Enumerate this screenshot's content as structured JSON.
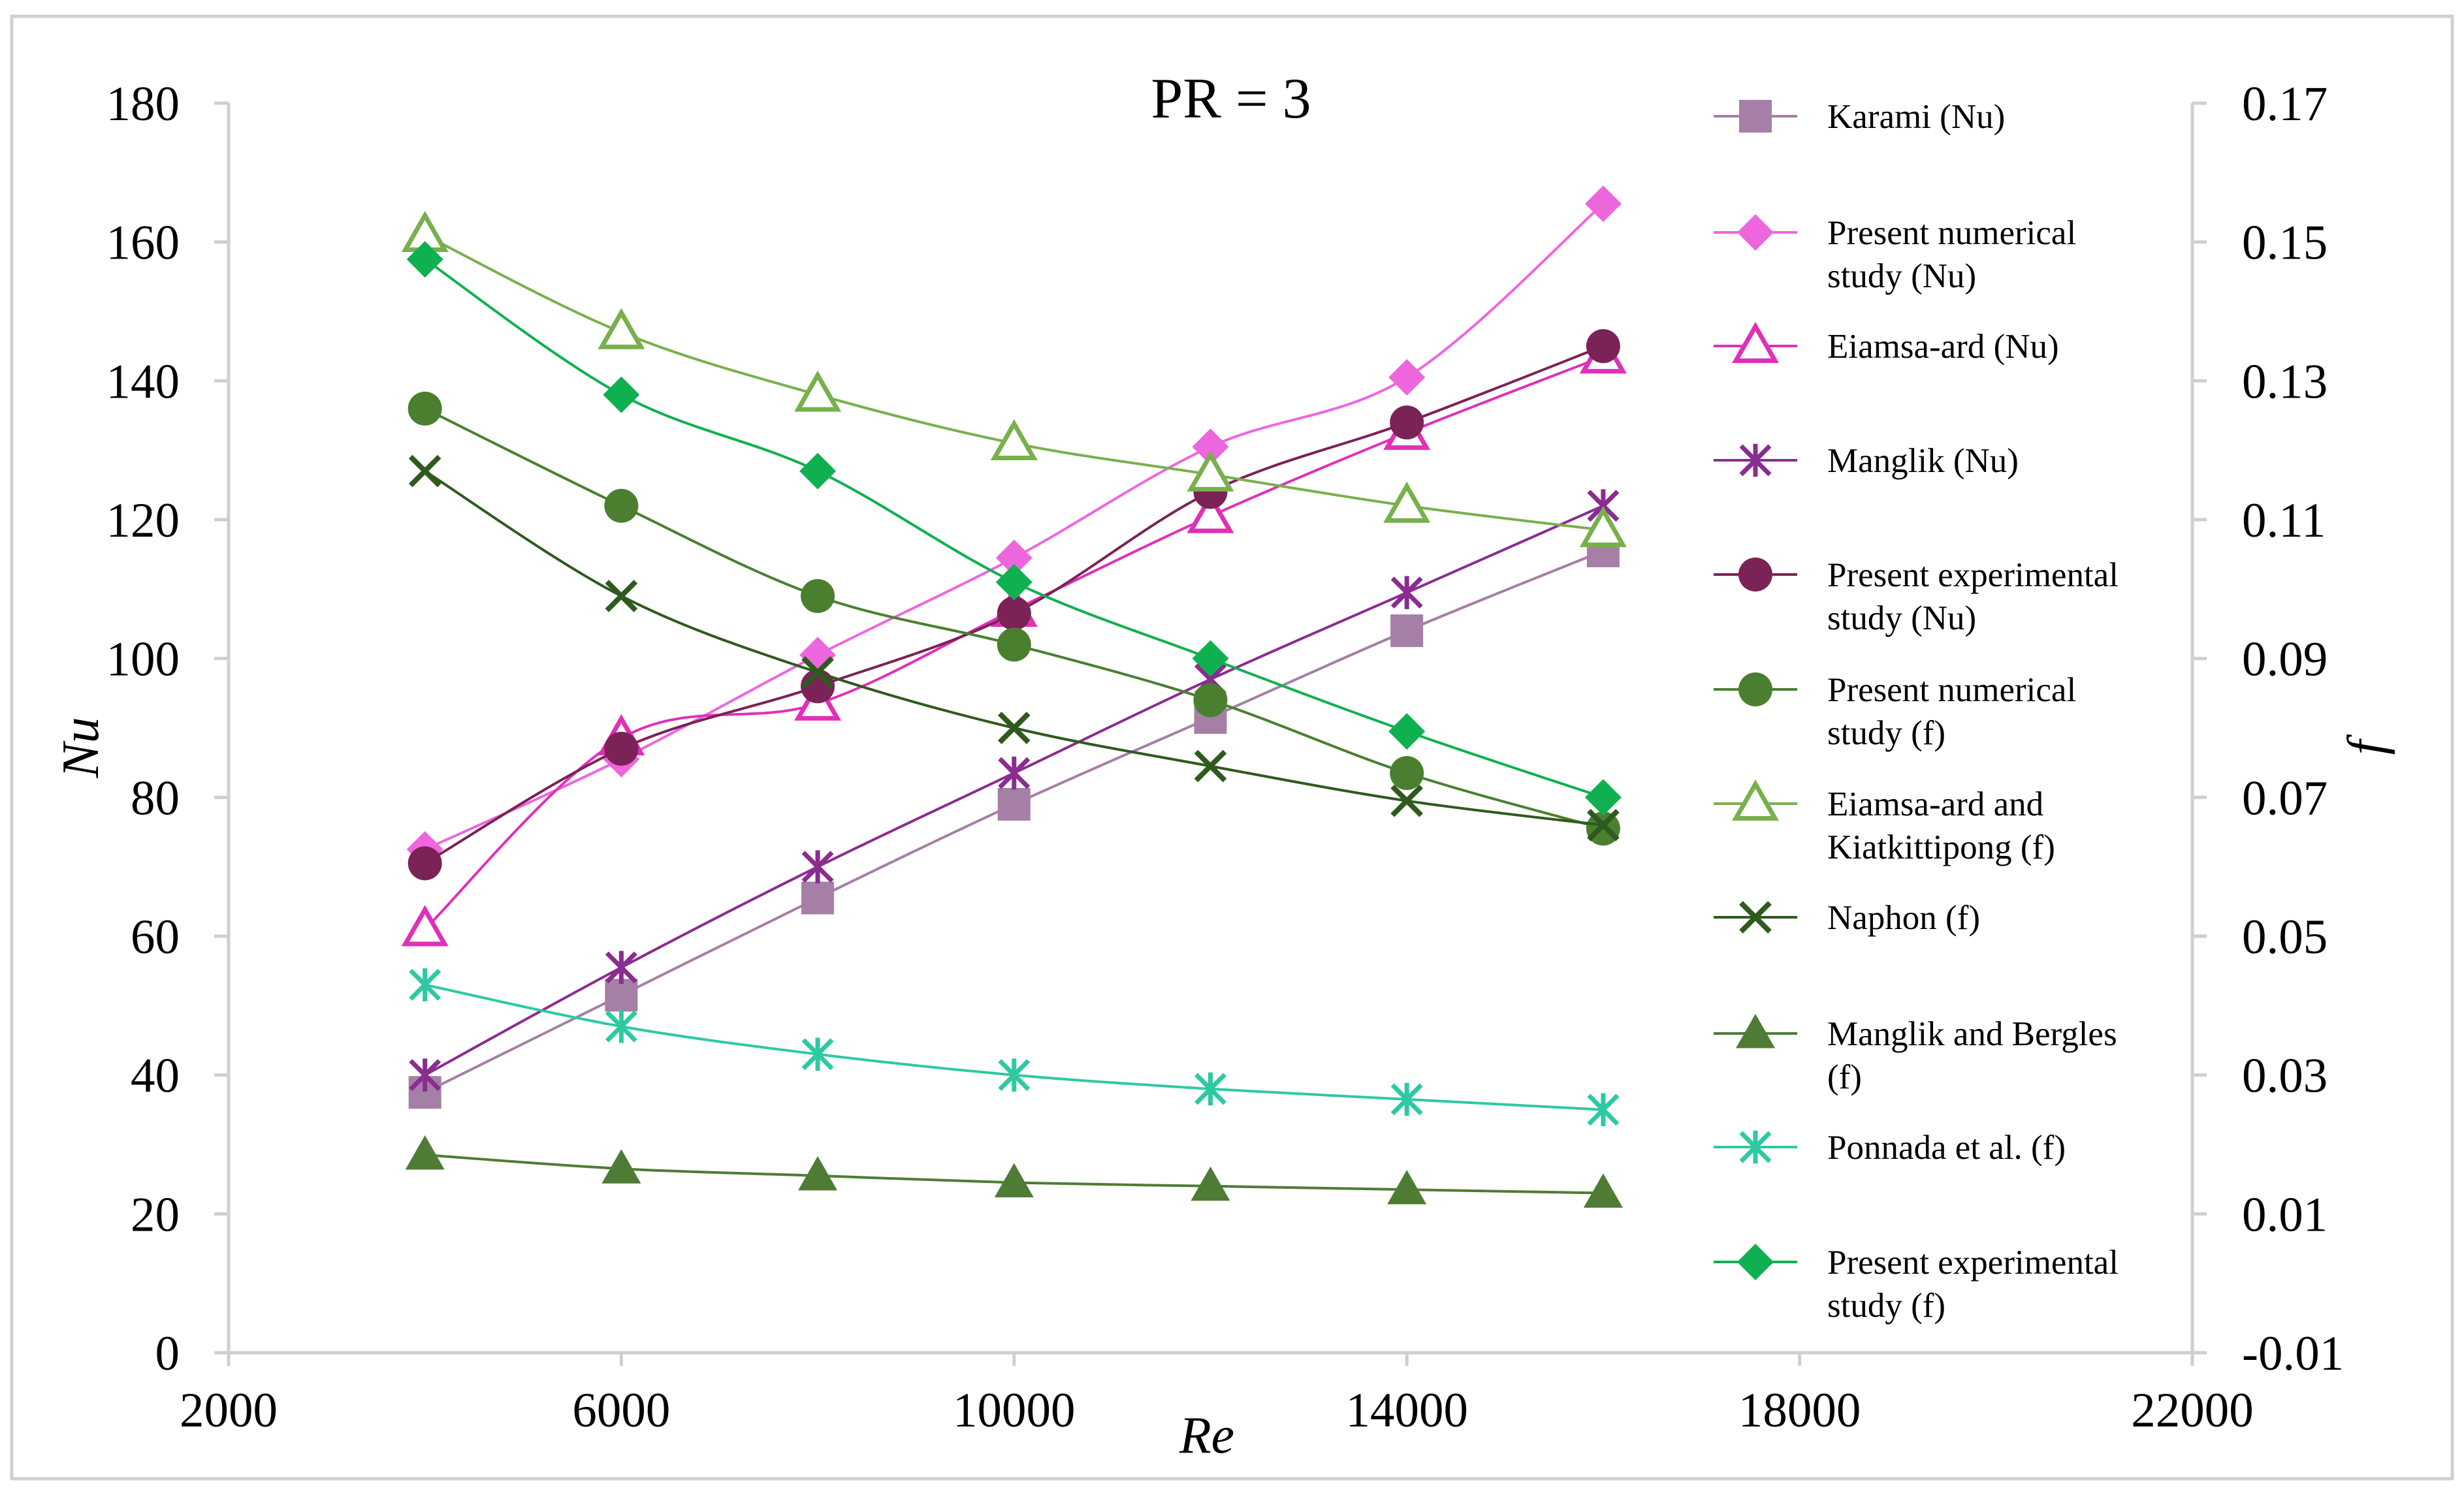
{
  "chart_data": {
    "type": "line",
    "title": "PR = 3",
    "xlabel": "Re",
    "ylabel": "Nu",
    "y2label": "f",
    "xlim": [
      2000,
      22000
    ],
    "ylim": [
      0,
      180
    ],
    "y2lim": [
      -0.01,
      0.17
    ],
    "x_ticks": [
      "2000",
      "6000",
      "10000",
      "14000",
      "18000",
      "22000"
    ],
    "y_ticks": [
      "0",
      "20",
      "40",
      "60",
      "80",
      "100",
      "120",
      "140",
      "160",
      "180"
    ],
    "y2_ticks": [
      "-0.01",
      "0.01",
      "0.03",
      "0.05",
      "0.07",
      "0.09",
      "0.11",
      "0.13",
      "0.15",
      "0.17"
    ],
    "x": [
      4000,
      6000,
      8000,
      10000,
      12000,
      14000,
      16000
    ],
    "series": [
      {
        "name": "Karami (Nu)",
        "legend": [
          "Karami (Nu)"
        ],
        "axis": "left",
        "color": "#a57fa6",
        "marker": "square",
        "values": [
          37.5,
          51.5,
          65.5,
          79,
          91.5,
          104,
          115.5
        ]
      },
      {
        "name": "Present numerical study (Nu)",
        "legend": [
          "Present numerical",
          "study (Nu)"
        ],
        "axis": "left",
        "color": "#ee66dd",
        "marker": "diamond",
        "values": [
          72.5,
          85.5,
          100.5,
          114.5,
          130.5,
          140.5,
          165.5
        ]
      },
      {
        "name": "Eiamsa-ard (Nu)",
        "legend": [
          "Eiamsa-ard (Nu)"
        ],
        "axis": "left",
        "color": "#e030b8",
        "marker": "triangle-open",
        "values": [
          61,
          88.5,
          93.5,
          107,
          120.5,
          132.5,
          143.5
        ]
      },
      {
        "name": "Manglik (Nu)",
        "legend": [
          "Manglik (Nu)"
        ],
        "axis": "left",
        "color": "#8a2c90",
        "marker": "star",
        "values": [
          40,
          55.5,
          70,
          83.5,
          97,
          109.5,
          122
        ]
      },
      {
        "name": "Present experimental study (Nu)",
        "legend": [
          "Present experimental",
          "study (Nu)"
        ],
        "axis": "left",
        "color": "#7b2256",
        "marker": "circle",
        "values": [
          70.5,
          87,
          96,
          106.5,
          124,
          134,
          145
        ]
      },
      {
        "name": "Present numerical study (f)",
        "legend": [
          "Present numerical",
          "study (f)"
        ],
        "axis": "right",
        "color": "#4a7f30",
        "marker": "circle",
        "values": [
          0.126,
          0.112,
          0.099,
          0.092,
          0.084,
          0.0735,
          0.0655
        ]
      },
      {
        "name": "Eiamsa-ard and Kiatkittipong (f)",
        "legend": [
          "Eiamsa-ard and",
          "Kiatkittipong (f)"
        ],
        "axis": "right",
        "color": "#78b04c",
        "marker": "triangle-open",
        "values": [
          0.151,
          0.137,
          0.128,
          0.121,
          0.1165,
          0.112,
          0.1085
        ]
      },
      {
        "name": "Naphon (f)",
        "legend": [
          "Naphon (f)"
        ],
        "axis": "right",
        "color": "#2f5a1e",
        "marker": "x",
        "values": [
          0.117,
          0.099,
          0.088,
          0.08,
          0.0745,
          0.0695,
          0.066
        ]
      },
      {
        "name": "Manglik and Bergles (f)",
        "legend": [
          "Manglik and Bergles",
          "(f)"
        ],
        "axis": "right",
        "color": "#4f7c34",
        "marker": "triangle",
        "values": [
          0.0185,
          0.0165,
          0.0155,
          0.0145,
          0.014,
          0.0135,
          0.013
        ]
      },
      {
        "name": "Ponnada et al. (f)",
        "legend": [
          "Ponnada et al. (f)"
        ],
        "axis": "right",
        "color": "#2ec9a3",
        "marker": "star",
        "values": [
          0.043,
          0.037,
          0.033,
          0.03,
          0.028,
          0.0265,
          0.025
        ]
      },
      {
        "name": "Present experimental study (f)",
        "legend": [
          "Present experimental",
          "study (f)"
        ],
        "axis": "right",
        "color": "#0fb050",
        "marker": "diamond",
        "values": [
          0.1475,
          0.128,
          0.117,
          0.101,
          0.09,
          0.0795,
          0.07
        ]
      }
    ]
  }
}
